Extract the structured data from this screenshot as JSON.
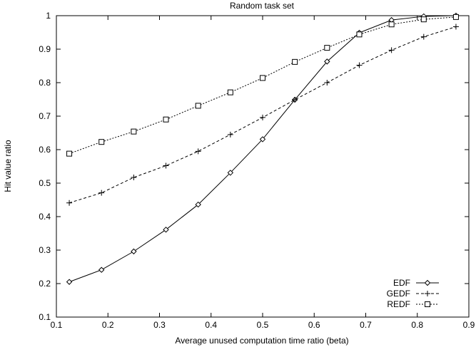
{
  "chart_data": {
    "type": "line",
    "title": "Random task set",
    "xlabel": "Average unused computation time ratio (beta)",
    "ylabel": "Hit value ratio",
    "xlim": [
      0.1,
      0.9
    ],
    "ylim": [
      0.1,
      1.0
    ],
    "xticks": [
      "0.1",
      "0.2",
      "0.3",
      "0.4",
      "0.5",
      "0.6",
      "0.7",
      "0.8",
      "0.9"
    ],
    "yticks": [
      "0.1",
      "0.2",
      "0.3",
      "0.4",
      "0.5",
      "0.6",
      "0.7",
      "0.8",
      "0.9",
      "1"
    ],
    "grid": false,
    "legend_position": "bottom-right",
    "x": [
      0.125,
      0.1875,
      0.25,
      0.3125,
      0.375,
      0.4375,
      0.5,
      0.5625,
      0.625,
      0.6875,
      0.75,
      0.8125,
      0.875
    ],
    "series": [
      {
        "name": "EDF",
        "marker": "diamond",
        "line": "solid",
        "values": [
          0.205,
          0.241,
          0.296,
          0.361,
          0.436,
          0.531,
          0.631,
          0.749,
          0.863,
          0.949,
          0.987,
          0.998,
          1.0
        ]
      },
      {
        "name": "GEDF",
        "marker": "plus",
        "line": "dashed",
        "values": [
          0.441,
          0.471,
          0.517,
          0.552,
          0.595,
          0.645,
          0.696,
          0.749,
          0.8,
          0.852,
          0.897,
          0.937,
          0.967
        ]
      },
      {
        "name": "REDF",
        "marker": "square",
        "line": "dotted",
        "values": [
          0.588,
          0.623,
          0.654,
          0.69,
          0.731,
          0.771,
          0.814,
          0.862,
          0.904,
          0.944,
          0.974,
          0.989,
          0.996
        ]
      }
    ]
  }
}
